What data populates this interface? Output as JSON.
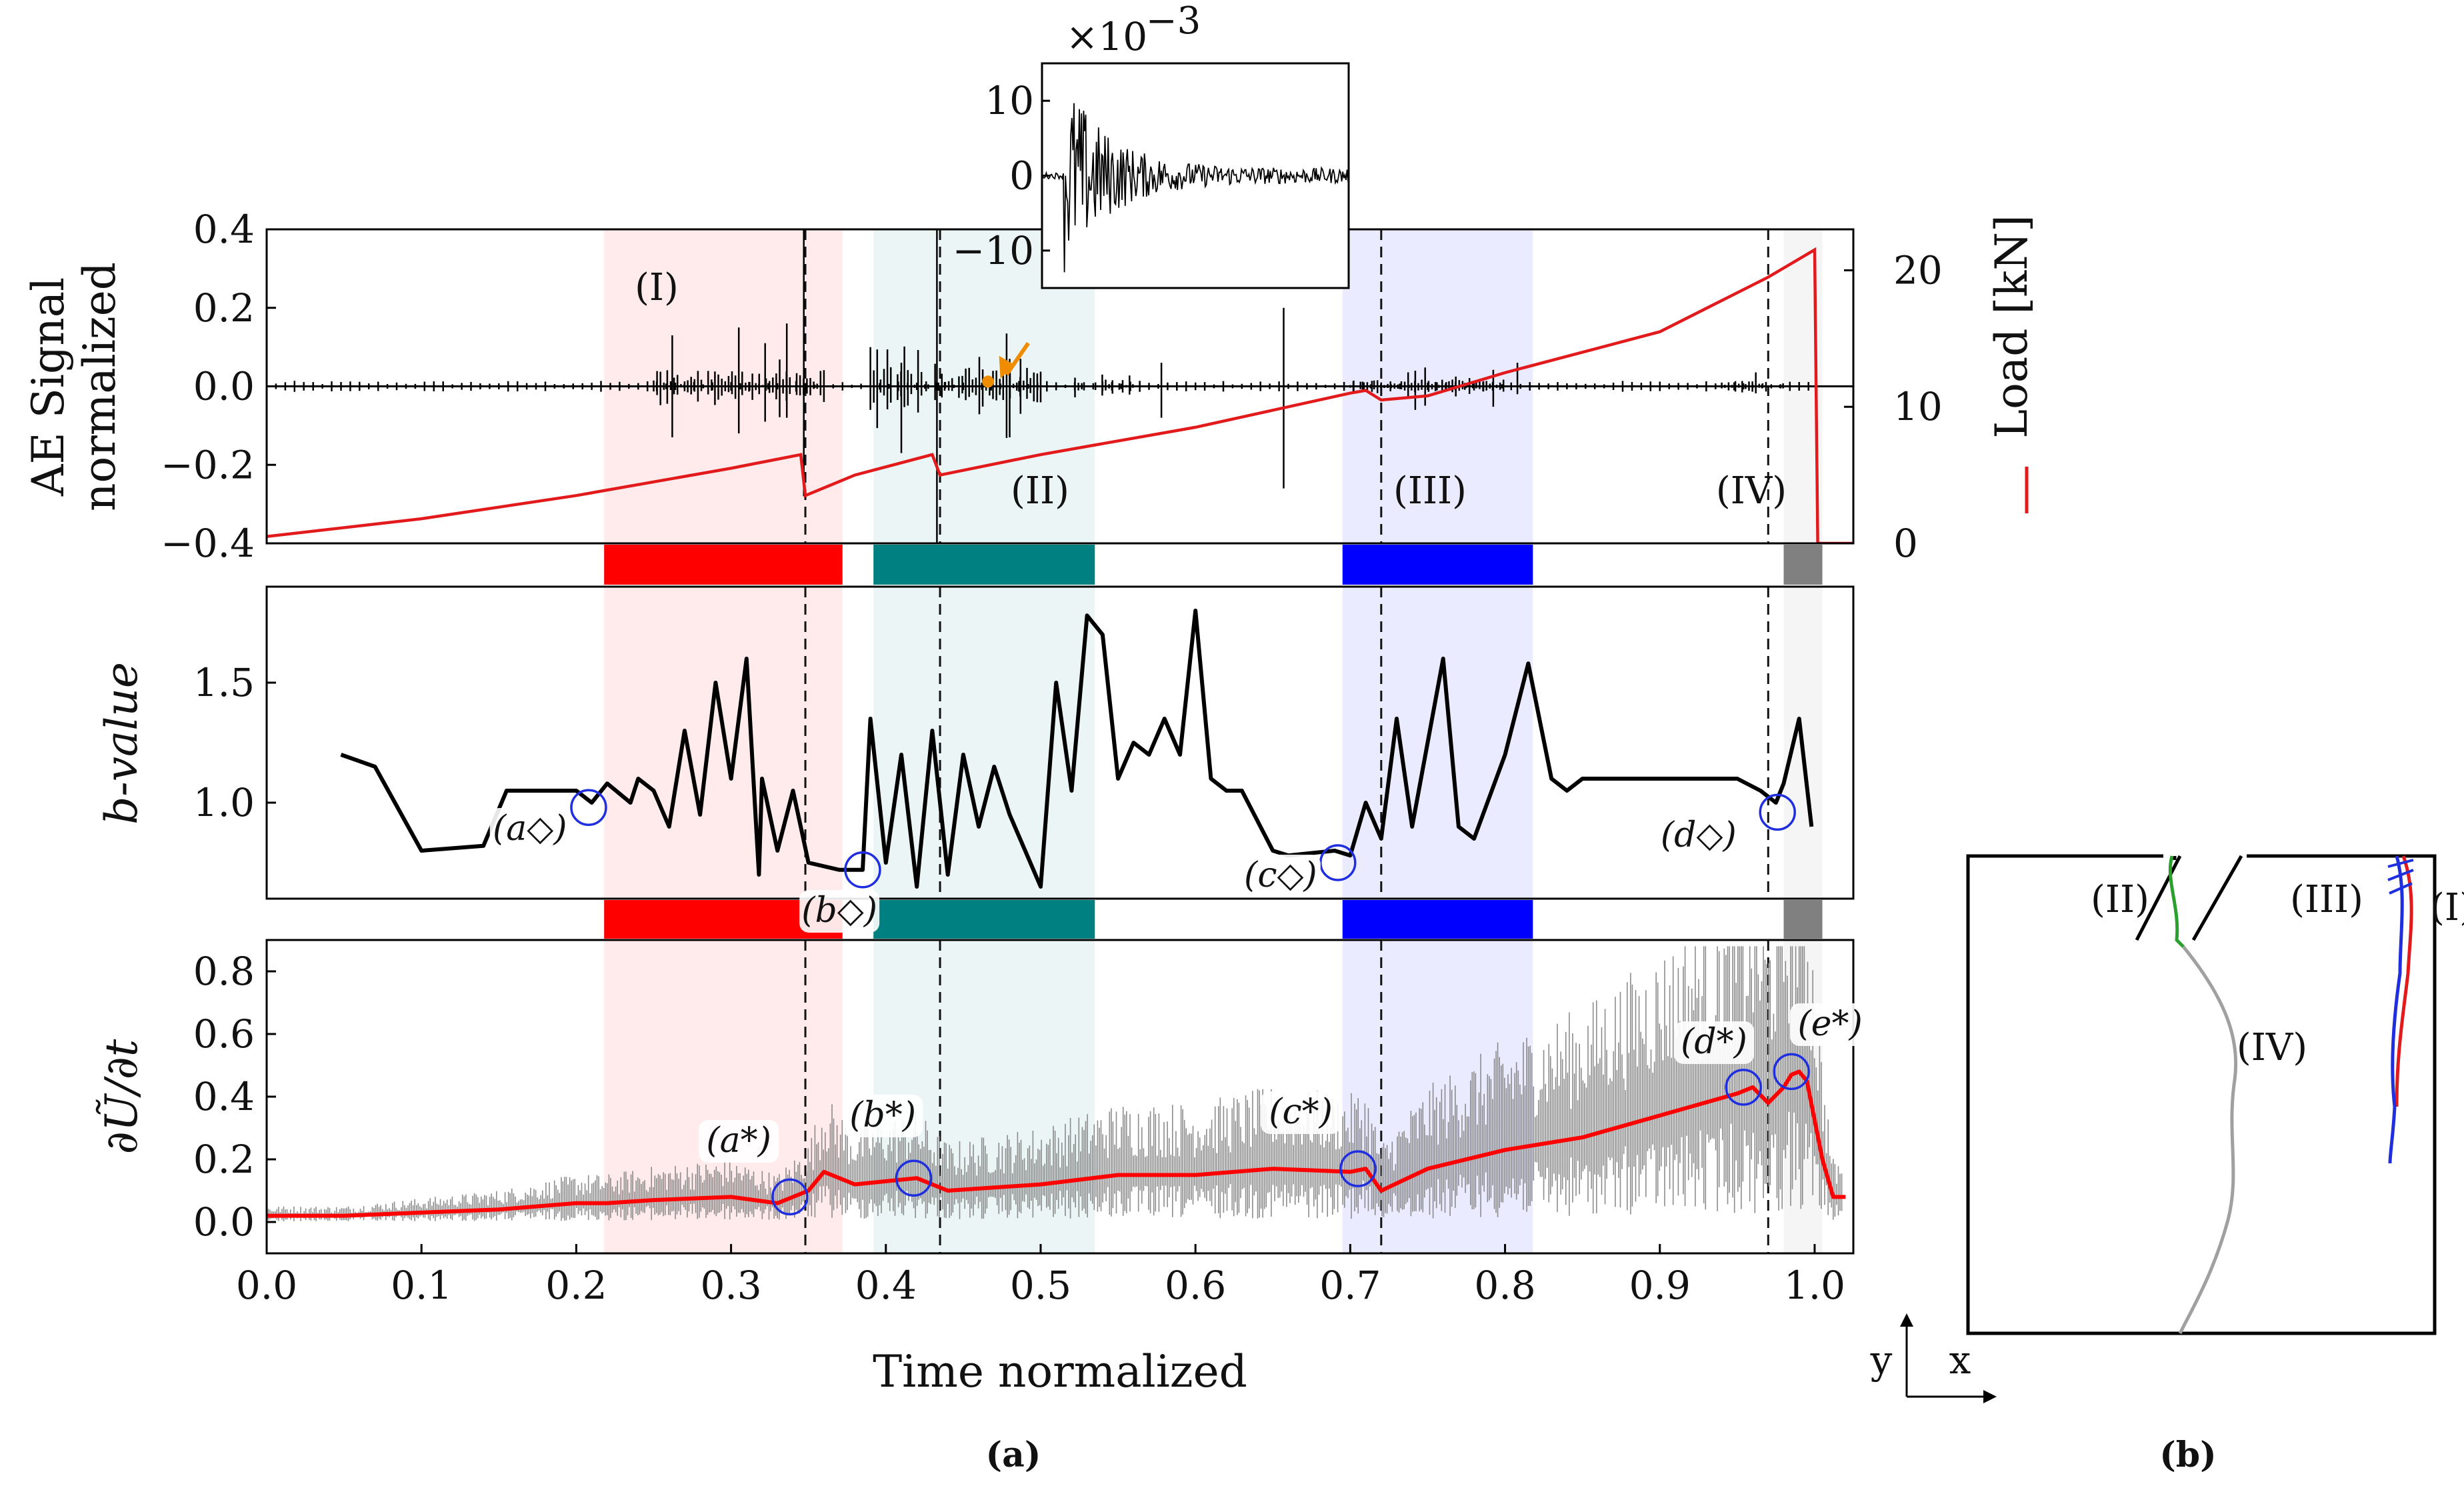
{
  "chart_data": [
    {
      "type": "line",
      "panel": "AE signal and load",
      "x_label": "Time normalized",
      "y_label_left": [
        "AE Signal",
        "normalized"
      ],
      "y_label_right": "Load [kN]",
      "x_range": [
        0.0,
        1.025
      ],
      "y_range_left": [
        -0.4,
        0.4
      ],
      "y_range_right": [
        0,
        23
      ],
      "x_ticks": [
        "0.0",
        "0.1",
        "0.2",
        "0.3",
        "0.4",
        "0.5",
        "0.6",
        "0.7",
        "0.8",
        "0.9",
        "1.0"
      ],
      "y_ticks_left": [
        "0.4",
        "0.2",
        "0.0",
        "−0.2",
        "−0.4"
      ],
      "y_ticks_right": [
        "20",
        "10",
        "0"
      ],
      "phase_labels": [
        "(I)",
        "(II)",
        "(III)",
        "(IV)"
      ],
      "phases": [
        {
          "label": "(I)",
          "start": 0.218,
          "end": 0.372,
          "color": "#ff0000"
        },
        {
          "label": "(II)",
          "start": 0.392,
          "end": 0.535,
          "color": "#008080"
        },
        {
          "label": "(III)",
          "start": 0.695,
          "end": 0.818,
          "color": "#0000ff"
        },
        {
          "label": "(IV)",
          "start": 0.98,
          "end": 1.005,
          "color": "#808080"
        }
      ],
      "event_lines_x": [
        0.348,
        0.435,
        0.72,
        0.97
      ],
      "series": [
        {
          "name": "Load",
          "color": "#e31a1c",
          "x": [
            0.0,
            0.1,
            0.2,
            0.25,
            0.3,
            0.345,
            0.348,
            0.38,
            0.43,
            0.435,
            0.5,
            0.6,
            0.7,
            0.71,
            0.72,
            0.75,
            0.8,
            0.9,
            0.97,
            1.0,
            1.002,
            1.025
          ],
          "y": [
            0.5,
            1.8,
            3.5,
            4.5,
            5.5,
            6.5,
            3.5,
            5.0,
            6.5,
            5.0,
            6.5,
            8.5,
            11.0,
            11.2,
            10.5,
            10.8,
            12.5,
            15.5,
            19.5,
            21.5,
            0.0,
            0.0
          ]
        }
      ],
      "inset": {
        "y_ticks": [
          "10",
          "0",
          "−10"
        ],
        "scale_label": "×10",
        "scale_exponent": "−3",
        "y_range": [
          -15,
          15
        ]
      }
    },
    {
      "type": "line",
      "panel": "b-value",
      "y_label": "b-value",
      "y_range": [
        0.6,
        1.9
      ],
      "y_ticks": [
        "1.5",
        "1.0"
      ],
      "series": [
        {
          "name": "b-value",
          "color": "#000000",
          "x": [
            0.048,
            0.07,
            0.1,
            0.14,
            0.155,
            0.2,
            0.21,
            0.22,
            0.235,
            0.24,
            0.25,
            0.26,
            0.27,
            0.28,
            0.29,
            0.3,
            0.31,
            0.318,
            0.32,
            0.33,
            0.34,
            0.35,
            0.37,
            0.385,
            0.39,
            0.4,
            0.41,
            0.42,
            0.43,
            0.44,
            0.45,
            0.46,
            0.47,
            0.48,
            0.5,
            0.51,
            0.52,
            0.53,
            0.54,
            0.55,
            0.56,
            0.57,
            0.58,
            0.59,
            0.6,
            0.61,
            0.62,
            0.63,
            0.65,
            0.66,
            0.69,
            0.7,
            0.71,
            0.72,
            0.73,
            0.74,
            0.76,
            0.77,
            0.78,
            0.8,
            0.815,
            0.83,
            0.84,
            0.85,
            0.87,
            0.9,
            0.95,
            0.965,
            0.975,
            0.98,
            0.99,
            0.998
          ],
          "y": [
            1.2,
            1.15,
            0.8,
            0.82,
            1.05,
            1.05,
            1.0,
            1.08,
            1.0,
            1.1,
            1.05,
            0.9,
            1.3,
            0.95,
            1.5,
            1.1,
            1.6,
            0.7,
            1.1,
            0.8,
            1.05,
            0.75,
            0.72,
            0.72,
            1.35,
            0.75,
            1.2,
            0.65,
            1.3,
            0.7,
            1.2,
            0.9,
            1.15,
            0.95,
            0.65,
            1.5,
            1.05,
            1.78,
            1.7,
            1.1,
            1.25,
            1.2,
            1.35,
            1.2,
            1.8,
            1.1,
            1.05,
            1.05,
            0.8,
            0.78,
            0.8,
            0.78,
            1.0,
            0.85,
            1.35,
            0.9,
            1.6,
            0.9,
            0.85,
            1.2,
            1.58,
            1.1,
            1.05,
            1.1,
            1.1,
            1.1,
            1.1,
            1.05,
            1.0,
            1.08,
            1.35,
            0.9
          ]
        }
      ],
      "annotations": [
        "(a◇)",
        "(b◇)",
        "(c◇)",
        "(d◇)"
      ]
    },
    {
      "type": "line",
      "panel": "energy rate",
      "y_label": "∂Ũ/∂t",
      "y_range": [
        -0.1,
        0.9
      ],
      "y_ticks": [
        "0.8",
        "0.6",
        "0.4",
        "0.2",
        "0.0"
      ],
      "series": [
        {
          "name": "smoothed",
          "color": "#ff0000",
          "x": [
            0.0,
            0.05,
            0.1,
            0.15,
            0.2,
            0.22,
            0.25,
            0.3,
            0.33,
            0.34,
            0.35,
            0.36,
            0.38,
            0.4,
            0.42,
            0.43,
            0.44,
            0.47,
            0.5,
            0.55,
            0.6,
            0.65,
            0.7,
            0.71,
            0.72,
            0.75,
            0.8,
            0.85,
            0.9,
            0.95,
            0.96,
            0.97,
            0.98,
            0.985,
            0.99,
            0.995,
            1.005,
            1.012,
            1.02
          ],
          "y": [
            0.02,
            0.02,
            0.03,
            0.04,
            0.06,
            0.06,
            0.07,
            0.08,
            0.06,
            0.08,
            0.1,
            0.16,
            0.12,
            0.13,
            0.14,
            0.12,
            0.1,
            0.11,
            0.12,
            0.15,
            0.15,
            0.17,
            0.16,
            0.17,
            0.1,
            0.17,
            0.23,
            0.27,
            0.34,
            0.41,
            0.43,
            0.38,
            0.43,
            0.47,
            0.48,
            0.45,
            0.2,
            0.08,
            0.08
          ]
        }
      ],
      "annotations": [
        "(a*)",
        "(b*)",
        "(c*)",
        "(d*)",
        "(e*)"
      ]
    },
    {
      "type": "other",
      "panel": "crack sketch",
      "labels": [
        "(II)",
        "(III)",
        "(I)",
        "(IV)"
      ],
      "axes": [
        "y",
        "x"
      ]
    }
  ],
  "captions": [
    "(a)",
    "(b)"
  ]
}
